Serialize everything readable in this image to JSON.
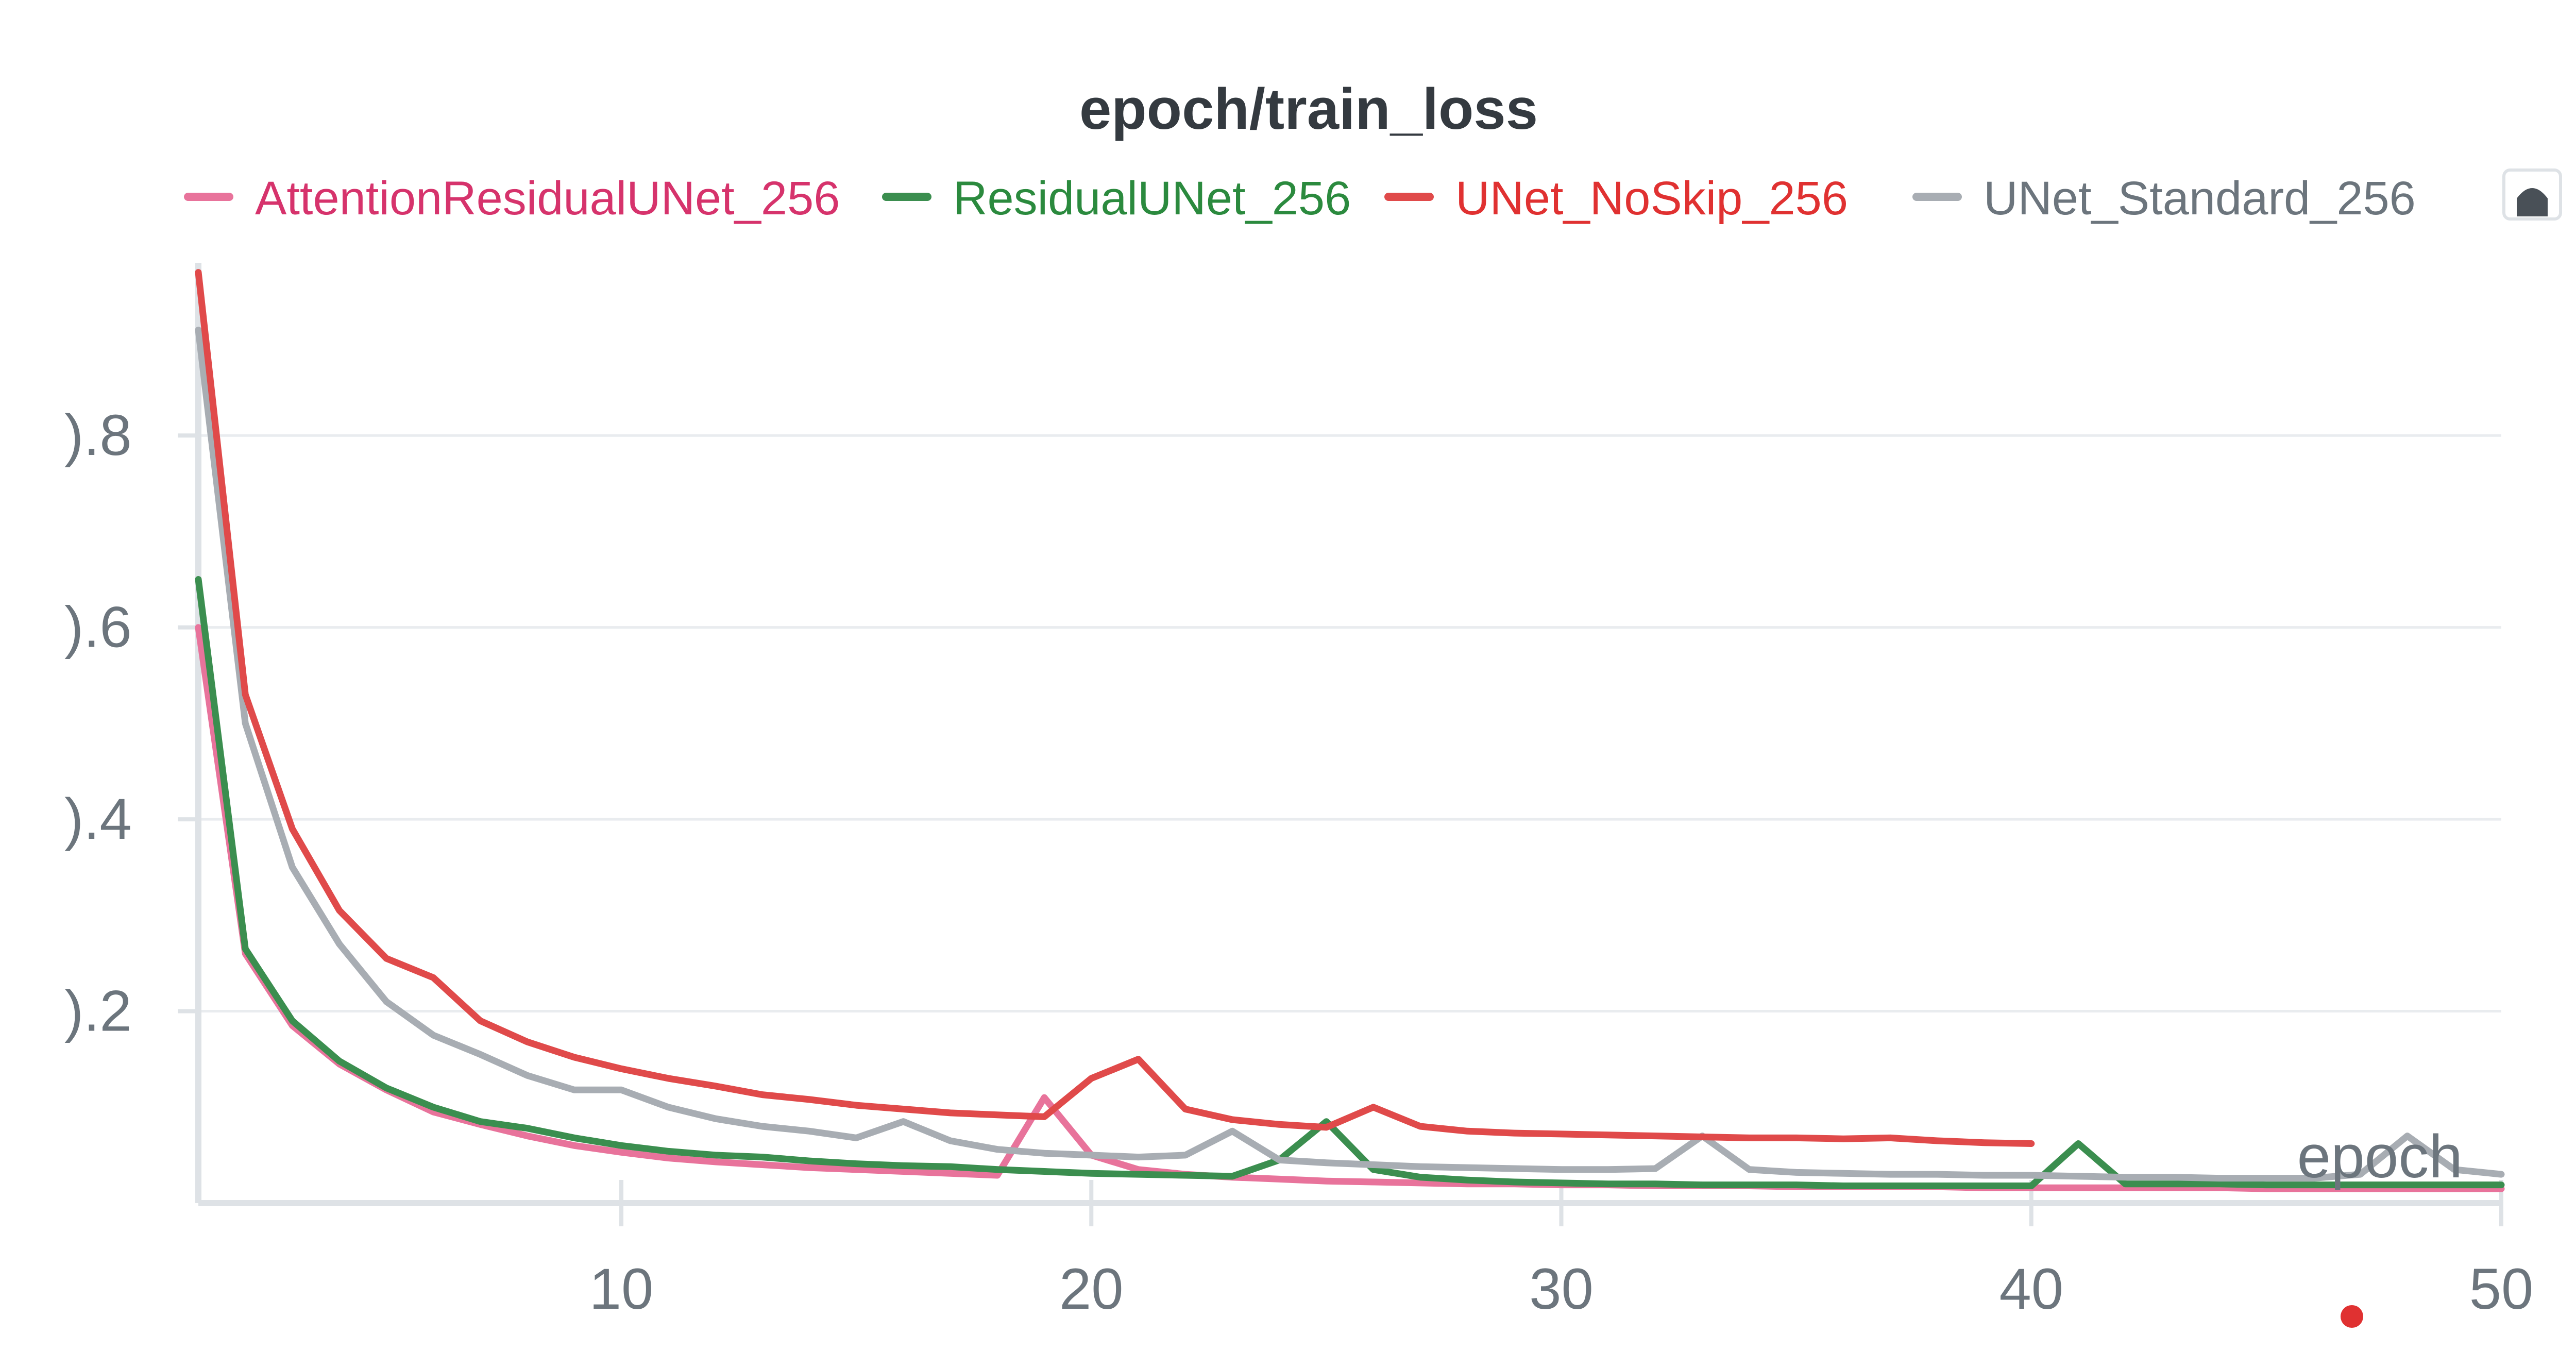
{
  "chart_data": {
    "type": "line",
    "title": "epoch/train_loss",
    "xlabel": "epoch",
    "ylabel": "",
    "xlim": [
      1,
      50
    ],
    "ylim": [
      0.0,
      0.98
    ],
    "x_ticks": [
      10,
      20,
      30,
      40,
      50
    ],
    "y_ticks": [
      0.2,
      0.4,
      0.6,
      0.8
    ],
    "x_tick_labels": [
      "10",
      "20",
      "30",
      "40",
      "50"
    ],
    "y_tick_labels": [
      ").2",
      ").4",
      ").6",
      ").8"
    ],
    "grid": "horizontal",
    "legend_position": "top",
    "series": [
      {
        "name": "AttentionResidualUNet_256",
        "color": "#e8739b",
        "text_color": "#d6336c",
        "x": [
          1,
          2,
          3,
          4,
          5,
          6,
          7,
          8,
          9,
          10,
          11,
          12,
          13,
          14,
          15,
          16,
          17,
          18,
          19,
          20,
          21,
          22,
          23,
          24,
          25,
          26,
          27,
          28,
          29,
          30,
          31,
          32,
          33,
          34,
          35,
          36,
          37,
          38,
          39,
          40,
          41,
          42,
          43,
          44,
          45,
          46,
          47,
          48,
          49,
          50
        ],
        "values": [
          0.6,
          0.26,
          0.185,
          0.145,
          0.118,
          0.095,
          0.082,
          0.07,
          0.06,
          0.053,
          0.047,
          0.043,
          0.04,
          0.037,
          0.035,
          0.033,
          0.031,
          0.029,
          0.11,
          0.05,
          0.035,
          0.03,
          0.027,
          0.025,
          0.023,
          0.022,
          0.021,
          0.02,
          0.02,
          0.019,
          0.019,
          0.018,
          0.018,
          0.018,
          0.017,
          0.017,
          0.017,
          0.017,
          0.016,
          0.016,
          0.016,
          0.016,
          0.016,
          0.016,
          0.015,
          0.015,
          0.015,
          0.015,
          0.015,
          0.015
        ]
      },
      {
        "name": "ResidualUNet_256",
        "color": "#3b8e4f",
        "text_color": "#2b8a3e",
        "x": [
          1,
          2,
          3,
          4,
          5,
          6,
          7,
          8,
          9,
          10,
          11,
          12,
          13,
          14,
          15,
          16,
          17,
          18,
          19,
          20,
          21,
          22,
          23,
          24,
          25,
          26,
          27,
          28,
          29,
          30,
          31,
          32,
          33,
          34,
          35,
          36,
          37,
          38,
          39,
          40,
          41,
          42,
          43,
          44,
          45,
          46,
          47,
          48,
          49,
          50
        ],
        "values": [
          0.65,
          0.265,
          0.19,
          0.148,
          0.12,
          0.1,
          0.085,
          0.078,
          0.068,
          0.06,
          0.054,
          0.05,
          0.048,
          0.044,
          0.041,
          0.039,
          0.038,
          0.035,
          0.033,
          0.031,
          0.03,
          0.029,
          0.028,
          0.045,
          0.085,
          0.035,
          0.027,
          0.024,
          0.022,
          0.021,
          0.02,
          0.02,
          0.019,
          0.019,
          0.019,
          0.018,
          0.018,
          0.018,
          0.018,
          0.018,
          0.062,
          0.02,
          0.02,
          0.02,
          0.019,
          0.019,
          0.019,
          0.019,
          0.019,
          0.019
        ]
      },
      {
        "name": "UNet_NoSkip_256",
        "color": "#e04a4a",
        "text_color": "#e03131",
        "x": [
          1,
          2,
          3,
          4,
          5,
          6,
          7,
          8,
          9,
          10,
          11,
          12,
          13,
          14,
          15,
          16,
          17,
          18,
          19,
          20,
          21,
          22,
          23,
          24,
          25,
          26,
          27,
          28,
          29,
          30,
          31,
          32,
          33,
          34,
          35,
          36,
          37,
          38,
          39,
          40
        ],
        "values": [
          0.97,
          0.53,
          0.39,
          0.305,
          0.255,
          0.235,
          0.19,
          0.168,
          0.152,
          0.14,
          0.13,
          0.122,
          0.113,
          0.108,
          0.102,
          0.098,
          0.094,
          0.092,
          0.09,
          0.13,
          0.15,
          0.098,
          0.087,
          0.082,
          0.079,
          0.1,
          0.08,
          0.075,
          0.073,
          0.072,
          0.071,
          0.07,
          0.069,
          0.068,
          0.068,
          0.067,
          0.068,
          0.065,
          0.063,
          0.062
        ]
      },
      {
        "name": "UNet_Standard_256",
        "color": "#a8adb3",
        "text_color": "#6c757d",
        "x": [
          1,
          2,
          3,
          4,
          5,
          6,
          7,
          8,
          9,
          10,
          11,
          12,
          13,
          14,
          15,
          16,
          17,
          18,
          19,
          20,
          21,
          22,
          23,
          24,
          25,
          26,
          27,
          28,
          29,
          30,
          31,
          32,
          33,
          34,
          35,
          36,
          37,
          38,
          39,
          40,
          41,
          42,
          43,
          44,
          45,
          46,
          47,
          48,
          49,
          50
        ],
        "values": [
          0.91,
          0.5,
          0.35,
          0.27,
          0.21,
          0.175,
          0.155,
          0.133,
          0.118,
          0.118,
          0.1,
          0.088,
          0.08,
          0.075,
          0.068,
          0.085,
          0.065,
          0.056,
          0.052,
          0.05,
          0.048,
          0.05,
          0.075,
          0.045,
          0.042,
          0.04,
          0.038,
          0.037,
          0.036,
          0.035,
          0.035,
          0.036,
          0.07,
          0.035,
          0.032,
          0.031,
          0.03,
          0.03,
          0.029,
          0.029,
          0.028,
          0.027,
          0.027,
          0.026,
          0.026,
          0.026,
          0.03,
          0.07,
          0.035,
          0.03
        ]
      }
    ]
  }
}
